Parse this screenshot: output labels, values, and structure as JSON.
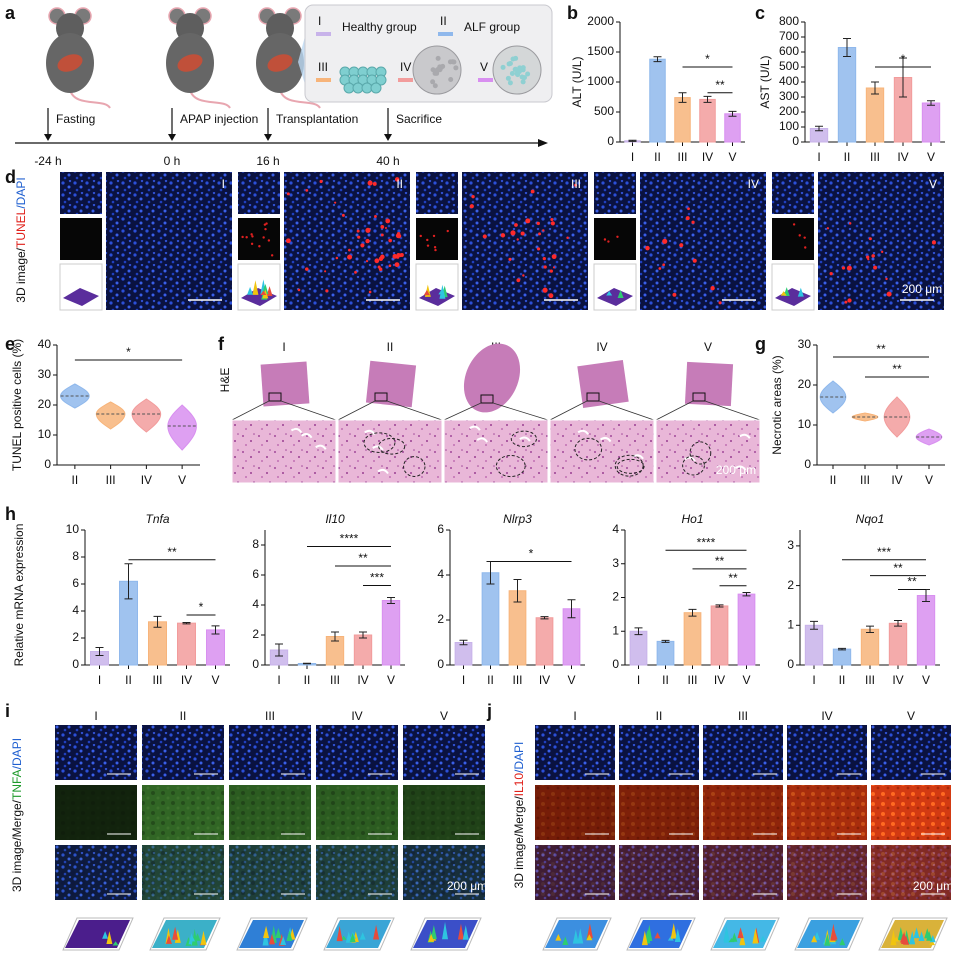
{
  "panel_labels": [
    "a",
    "b",
    "c",
    "d",
    "e",
    "f",
    "g",
    "h",
    "i",
    "j"
  ],
  "schedule": {
    "events": [
      {
        "time": "-24 h",
        "label": "Fasting"
      },
      {
        "time": "0 h",
        "label": "APAP injection"
      },
      {
        "time": "16 h",
        "label": "Transplantation"
      },
      {
        "time": "40 h",
        "label": "Sacrifice"
      }
    ]
  },
  "groups_legend": [
    {
      "numeral": "I",
      "name": "Healthy group",
      "color": "#c8b3ea"
    },
    {
      "numeral": "II",
      "name": "ALF group",
      "color": "#8fb8ec"
    },
    {
      "numeral": "III",
      "color": "#f7b47a"
    },
    {
      "numeral": "IV",
      "color": "#f29c9c"
    },
    {
      "numeral": "V",
      "color": "#d88ff0"
    }
  ],
  "chart_data": [
    {
      "type": "bar",
      "ylabel": "ALT (U/L)",
      "categories": [
        "I",
        "II",
        "III",
        "IV",
        "V"
      ],
      "values": [
        20,
        1380,
        740,
        710,
        470
      ],
      "errors": [
        10,
        40,
        80,
        50,
        40
      ],
      "colors": [
        "#c8b3ea",
        "#8fb8ec",
        "#f7b47a",
        "#f29c9c",
        "#d88ff0"
      ],
      "ylim": [
        0,
        2000
      ],
      "yticks": [
        0,
        500,
        1000,
        1500,
        2000
      ],
      "significance": [
        {
          "from": 2,
          "to": 4,
          "y": 1250,
          "label": "*"
        },
        {
          "from": 3,
          "to": 4,
          "y": 820,
          "label": "**"
        }
      ]
    },
    {
      "type": "bar",
      "ylabel": "AST (U/L)",
      "categories": [
        "I",
        "II",
        "III",
        "IV",
        "V"
      ],
      "values": [
        90,
        630,
        360,
        430,
        260
      ],
      "errors": [
        15,
        60,
        40,
        130,
        15
      ],
      "colors": [
        "#c8b3ea",
        "#8fb8ec",
        "#f7b47a",
        "#f29c9c",
        "#d88ff0"
      ],
      "ylim": [
        0,
        800
      ],
      "yticks": [
        0,
        100,
        200,
        300,
        400,
        500,
        600,
        700,
        800
      ],
      "significance": [
        {
          "from": 2,
          "to": 4,
          "y": 500,
          "label": "*"
        }
      ]
    },
    {
      "type": "violin",
      "ylabel": "TUNEL positive cells (%)",
      "categories": [
        "II",
        "III",
        "IV",
        "V"
      ],
      "values": [
        23,
        17,
        17,
        13
      ],
      "low": [
        19,
        12,
        11,
        5
      ],
      "high": [
        27,
        21,
        22,
        20
      ],
      "colors": [
        "#8fb8ec",
        "#f7b47a",
        "#f29c9c",
        "#d88ff0"
      ],
      "ylim": [
        0,
        40
      ],
      "yticks": [
        0,
        10,
        20,
        30,
        40
      ],
      "significance": [
        {
          "from": 0,
          "to": 3,
          "y": 35,
          "label": "*"
        }
      ]
    },
    {
      "type": "violin",
      "ylabel": "Necrotic areas (%)",
      "categories": [
        "II",
        "III",
        "IV",
        "V"
      ],
      "values": [
        17,
        12,
        12,
        7
      ],
      "low": [
        13,
        11,
        7,
        5
      ],
      "high": [
        21,
        13,
        17,
        9
      ],
      "colors": [
        "#8fb8ec",
        "#f7b47a",
        "#f29c9c",
        "#d88ff0"
      ],
      "ylim": [
        0,
        30
      ],
      "yticks": [
        0,
        10,
        20,
        30
      ],
      "significance": [
        {
          "from": 0,
          "to": 3,
          "y": 27,
          "label": "**"
        },
        {
          "from": 1,
          "to": 3,
          "y": 22,
          "label": "**"
        }
      ]
    },
    {
      "type": "bar",
      "title": "Tnfa",
      "ylabel": "Relative mRNA expression",
      "categories": [
        "I",
        "II",
        "III",
        "IV",
        "V"
      ],
      "values": [
        1,
        6.2,
        3.2,
        3.1,
        2.6
      ],
      "errors": [
        0.3,
        1.3,
        0.4,
        0.05,
        0.3
      ],
      "colors": [
        "#c8b3ea",
        "#8fb8ec",
        "#f7b47a",
        "#f29c9c",
        "#d88ff0"
      ],
      "ylim": [
        0,
        10
      ],
      "yticks": [
        0,
        2,
        4,
        6,
        8,
        10
      ],
      "significance": [
        {
          "from": 1,
          "to": 4,
          "y": 7.8,
          "label": "**"
        },
        {
          "from": 3,
          "to": 4,
          "y": 3.7,
          "label": "*"
        }
      ]
    },
    {
      "type": "bar",
      "title": "Il10",
      "categories": [
        "I",
        "II",
        "III",
        "IV",
        "V"
      ],
      "values": [
        1,
        0.1,
        1.9,
        2,
        4.3
      ],
      "errors": [
        0.4,
        0.02,
        0.3,
        0.2,
        0.2
      ],
      "colors": [
        "#c8b3ea",
        "#8fb8ec",
        "#f7b47a",
        "#f29c9c",
        "#d88ff0"
      ],
      "ylim": [
        0,
        9
      ],
      "yticks": [
        0,
        2,
        4,
        6,
        8
      ],
      "significance": [
        {
          "from": 1,
          "to": 4,
          "y": 7.9,
          "label": "****"
        },
        {
          "from": 2,
          "to": 4,
          "y": 6.6,
          "label": "**"
        },
        {
          "from": 3,
          "to": 4,
          "y": 5.3,
          "label": "***"
        }
      ]
    },
    {
      "type": "bar",
      "title": "Nlrp3",
      "categories": [
        "I",
        "II",
        "III",
        "IV",
        "V"
      ],
      "values": [
        1,
        4.1,
        3.3,
        2.1,
        2.5
      ],
      "errors": [
        0.1,
        0.5,
        0.5,
        0.05,
        0.4
      ],
      "colors": [
        "#c8b3ea",
        "#8fb8ec",
        "#f7b47a",
        "#f29c9c",
        "#d88ff0"
      ],
      "ylim": [
        0,
        6
      ],
      "yticks": [
        0,
        2,
        4,
        6
      ],
      "significance": [
        {
          "from": 1,
          "to": 4,
          "y": 4.6,
          "label": "*"
        }
      ]
    },
    {
      "type": "bar",
      "title": "Ho1",
      "categories": [
        "I",
        "II",
        "III",
        "IV",
        "V"
      ],
      "values": [
        1,
        0.7,
        1.55,
        1.75,
        2.1
      ],
      "errors": [
        0.1,
        0.03,
        0.1,
        0.03,
        0.05
      ],
      "colors": [
        "#c8b3ea",
        "#8fb8ec",
        "#f7b47a",
        "#f29c9c",
        "#d88ff0"
      ],
      "ylim": [
        0,
        4
      ],
      "yticks": [
        0,
        1,
        2,
        3,
        4
      ],
      "significance": [
        {
          "from": 1,
          "to": 4,
          "y": 3.4,
          "label": "****"
        },
        {
          "from": 2,
          "to": 4,
          "y": 2.85,
          "label": "**"
        },
        {
          "from": 3,
          "to": 4,
          "y": 2.35,
          "label": "**"
        }
      ]
    },
    {
      "type": "bar",
      "title": "Nqo1",
      "categories": [
        "I",
        "II",
        "III",
        "IV",
        "V"
      ],
      "values": [
        1,
        0.4,
        0.9,
        1.05,
        1.75
      ],
      "errors": [
        0.1,
        0.02,
        0.08,
        0.07,
        0.15
      ],
      "colors": [
        "#c8b3ea",
        "#8fb8ec",
        "#f7b47a",
        "#f29c9c",
        "#d88ff0"
      ],
      "ylim": [
        0,
        3.4
      ],
      "yticks": [
        0,
        1,
        2,
        3
      ],
      "significance": [
        {
          "from": 1,
          "to": 4,
          "y": 2.65,
          "label": "***"
        },
        {
          "from": 2,
          "to": 4,
          "y": 2.25,
          "label": "**"
        },
        {
          "from": 3,
          "to": 4,
          "y": 1.9,
          "label": "**"
        }
      ]
    }
  ],
  "imaging": {
    "tunel": {
      "label_parts": [
        "3D image/",
        "TUNEL",
        "/DAPI"
      ],
      "label_colors": [
        "#111111",
        "#e0201a",
        "#1f5fd0"
      ],
      "groups": [
        "I",
        "II",
        "III",
        "IV",
        "V"
      ],
      "scale": "200 μm"
    },
    "he": {
      "label": "H&E",
      "groups": [
        "I",
        "II",
        "III",
        "IV",
        "V"
      ],
      "scale": "200 μm"
    },
    "tnfa": {
      "label_parts": [
        "3D image/Merge/",
        "TNFA",
        "/DAPI"
      ],
      "label_colors": [
        "#111111",
        "#1c9a2a",
        "#1f5fd0"
      ],
      "groups": [
        "I",
        "II",
        "III",
        "IV",
        "V"
      ],
      "scale": "200 μm"
    },
    "il10": {
      "label_parts": [
        "3D image/Merge/",
        "IL10",
        "/DAPI"
      ],
      "label_colors": [
        "#111111",
        "#e0201a",
        "#1f5fd0"
      ],
      "groups": [
        "I",
        "II",
        "III",
        "IV",
        "V"
      ],
      "scale": "200 μm"
    }
  }
}
